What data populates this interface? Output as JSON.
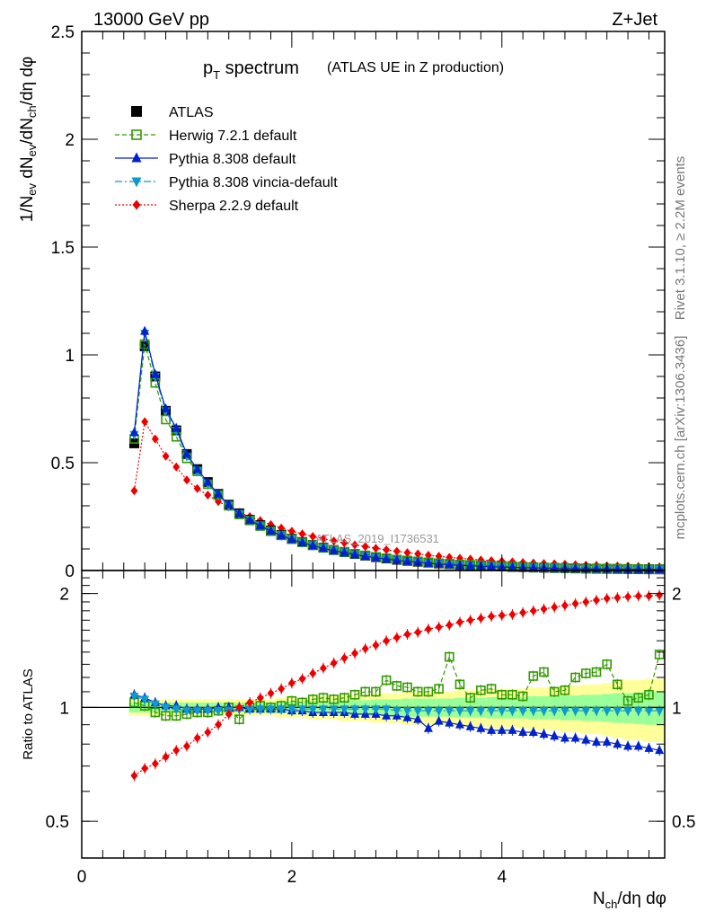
{
  "header": {
    "energy": "13000 GeV pp",
    "process": "Z+Jet",
    "side_top": "Rivet 3.1.10, ≥ 2.2M events",
    "side_bottom": "mcplots.cern.ch [arXiv:1306.3436]",
    "watermark": "ATLAS_2019_I1736531"
  },
  "colors": {
    "atlas": "#000000",
    "herwig": "#339900",
    "pythia": "#0022cc",
    "vincia": "#1199cc",
    "sherpa": "#ee0000",
    "band_outer": "#ffff99",
    "band_inner": "#99ff99"
  },
  "chart_data": [
    {
      "type": "line",
      "panel": "main",
      "title_main": "p",
      "title_sub": "T",
      "title_rest": " spectrum",
      "title_note": "(ATLAS UE in Z production)",
      "ylabel": "1/N_ev dN_ev/dN_ch/dη dφ",
      "ylim": [
        0,
        2.5
      ],
      "yticks": [
        "0",
        "0.5",
        "1",
        "1.5",
        "2",
        "2.5"
      ],
      "x": [
        0.5,
        0.6,
        0.7,
        0.8,
        0.9,
        1.0,
        1.1,
        1.2,
        1.3,
        1.4,
        1.5,
        1.6,
        1.7,
        1.8,
        1.9,
        2.0,
        2.1,
        2.2,
        2.3,
        2.4,
        2.5,
        2.6,
        2.7,
        2.8,
        2.9,
        3.0,
        3.1,
        3.2,
        3.3,
        3.4,
        3.5,
        3.6,
        3.7,
        3.8,
        3.9,
        4.0,
        4.1,
        4.2,
        4.3,
        4.4,
        4.5,
        4.6,
        4.7,
        4.8,
        4.9,
        5.0,
        5.1,
        5.2,
        5.3,
        5.4,
        5.5
      ],
      "legend": [
        {
          "label": "ATLAS",
          "marker": "square-filled"
        },
        {
          "label": "Herwig 7.2.1 default",
          "marker": "square-open"
        },
        {
          "label": "Pythia 8.308 default",
          "marker": "triangle-up"
        },
        {
          "label": "Pythia 8.308 vincia-default",
          "marker": "triangle-down"
        },
        {
          "label": "Sherpa 2.2.9 default",
          "marker": "diamond"
        }
      ],
      "series": [
        {
          "name": "ATLAS",
          "values": [
            0.59,
            1.04,
            0.9,
            0.74,
            0.65,
            0.54,
            0.47,
            0.41,
            0.355,
            0.305,
            0.265,
            0.235,
            0.21,
            0.185,
            0.165,
            0.147,
            0.132,
            0.118,
            0.106,
            0.095,
            0.086,
            0.077,
            0.069,
            0.062,
            0.056,
            0.05,
            0.045,
            0.041,
            0.037,
            0.033,
            0.03,
            0.027,
            0.025,
            0.023,
            0.021,
            0.019,
            0.017,
            0.0155,
            0.014,
            0.013,
            0.012,
            0.011,
            0.01,
            0.0093,
            0.0086,
            0.008,
            0.0074,
            0.0068,
            0.0063,
            0.0058,
            0.0054
          ]
        },
        {
          "name": "Herwig 7.2.1 default",
          "values": [
            0.61,
            1.05,
            0.87,
            0.7,
            0.62,
            0.52,
            0.46,
            0.4,
            0.35,
            0.3,
            0.26,
            0.232,
            0.206,
            0.182,
            0.163,
            0.145,
            0.131,
            0.117,
            0.105,
            0.095,
            0.086,
            0.078,
            0.07,
            0.063,
            0.057,
            0.051,
            0.046,
            0.042,
            0.038,
            0.034,
            0.031,
            0.028,
            0.026,
            0.024,
            0.022,
            0.02,
            0.018,
            0.016,
            0.0147,
            0.0136,
            0.0126,
            0.0116,
            0.0107,
            0.0099,
            0.0092,
            0.0085,
            0.0079,
            0.0073,
            0.0068,
            0.0063,
            0.0059
          ]
        },
        {
          "name": "Pythia 8.308 default",
          "values": [
            0.64,
            1.11,
            0.91,
            0.75,
            0.66,
            0.54,
            0.47,
            0.41,
            0.355,
            0.305,
            0.264,
            0.233,
            0.208,
            0.183,
            0.162,
            0.144,
            0.129,
            0.115,
            0.103,
            0.092,
            0.083,
            0.074,
            0.066,
            0.059,
            0.053,
            0.047,
            0.042,
            0.038,
            0.034,
            0.03,
            0.027,
            0.024,
            0.022,
            0.02,
            0.018,
            0.016,
            0.0145,
            0.0132,
            0.012,
            0.011,
            0.0099,
            0.009,
            0.0082,
            0.0075,
            0.0069,
            0.0063,
            0.0058,
            0.0053,
            0.0049,
            0.0045,
            0.0041
          ]
        },
        {
          "name": "Pythia 8.308 vincia-default",
          "values": [
            0.63,
            1.1,
            0.9,
            0.74,
            0.65,
            0.53,
            0.46,
            0.4,
            0.35,
            0.3,
            0.262,
            0.232,
            0.207,
            0.182,
            0.162,
            0.145,
            0.13,
            0.116,
            0.104,
            0.094,
            0.085,
            0.076,
            0.068,
            0.061,
            0.055,
            0.049,
            0.044,
            0.04,
            0.036,
            0.032,
            0.029,
            0.026,
            0.024,
            0.022,
            0.02,
            0.018,
            0.016,
            0.0148,
            0.0135,
            0.0124,
            0.0113,
            0.0104,
            0.0096,
            0.0088,
            0.0081,
            0.0075,
            0.0069,
            0.0064,
            0.0059,
            0.0054,
            0.005
          ]
        },
        {
          "name": "Sherpa 2.2.9 default",
          "values": [
            0.37,
            0.69,
            0.61,
            0.53,
            0.48,
            0.42,
            0.38,
            0.35,
            0.32,
            0.295,
            0.27,
            0.25,
            0.232,
            0.213,
            0.197,
            0.182,
            0.17,
            0.158,
            0.147,
            0.137,
            0.128,
            0.119,
            0.111,
            0.103,
            0.096,
            0.089,
            0.083,
            0.077,
            0.071,
            0.066,
            0.061,
            0.057,
            0.053,
            0.049,
            0.046,
            0.043,
            0.04,
            0.037,
            0.035,
            0.033,
            0.031,
            0.029,
            0.027,
            0.025,
            0.024,
            0.022,
            0.021,
            0.02,
            0.019,
            0.018,
            0.017
          ]
        }
      ]
    },
    {
      "type": "line",
      "panel": "ratio",
      "ylabel": "Ratio to ATLAS",
      "xlabel": "N_ch/dη dφ",
      "xlim": [
        0,
        5.55
      ],
      "ylim": [
        0.4,
        2.3
      ],
      "log_y": true,
      "xticks": [
        "0",
        "2",
        "4"
      ],
      "yticks": [
        "0.5",
        "1",
        "2"
      ],
      "band_outer": [
        0.05,
        0.05,
        0.05,
        0.05,
        0.05,
        0.05,
        0.05,
        0.05,
        0.05,
        0.05,
        0.05,
        0.05,
        0.05,
        0.05,
        0.06,
        0.06,
        0.06,
        0.07,
        0.07,
        0.07,
        0.08,
        0.08,
        0.08,
        0.09,
        0.09,
        0.09,
        0.1,
        0.1,
        0.1,
        0.1,
        0.1,
        0.11,
        0.11,
        0.11,
        0.12,
        0.12,
        0.12,
        0.12,
        0.13,
        0.13,
        0.13,
        0.14,
        0.14,
        0.15,
        0.15,
        0.16,
        0.17,
        0.18,
        0.18,
        0.19,
        0.19
      ],
      "band_inner": [
        0.03,
        0.03,
        0.03,
        0.03,
        0.03,
        0.03,
        0.03,
        0.03,
        0.03,
        0.03,
        0.03,
        0.03,
        0.03,
        0.03,
        0.035,
        0.035,
        0.035,
        0.04,
        0.04,
        0.04,
        0.045,
        0.045,
        0.045,
        0.05,
        0.05,
        0.05,
        0.055,
        0.055,
        0.055,
        0.055,
        0.055,
        0.06,
        0.06,
        0.06,
        0.065,
        0.065,
        0.065,
        0.065,
        0.07,
        0.07,
        0.07,
        0.075,
        0.075,
        0.08,
        0.08,
        0.085,
        0.09,
        0.09,
        0.095,
        0.1,
        0.1
      ],
      "series": [
        {
          "name": "Herwig 7.2.1 default",
          "values": [
            1.03,
            1.01,
            0.97,
            0.95,
            0.95,
            0.96,
            0.97,
            0.97,
            0.98,
            1.0,
            0.93,
            1.0,
            1.01,
            1.0,
            1.01,
            1.04,
            1.03,
            1.05,
            1.06,
            1.05,
            1.06,
            1.08,
            1.1,
            1.1,
            1.18,
            1.14,
            1.13,
            1.1,
            1.1,
            1.12,
            1.36,
            1.15,
            1.06,
            1.11,
            1.12,
            1.08,
            1.08,
            1.07,
            1.21,
            1.24,
            1.1,
            1.11,
            1.2,
            1.23,
            1.24,
            1.3,
            1.15,
            1.04,
            1.06,
            1.08,
            1.38
          ]
        },
        {
          "name": "Pythia 8.308 default",
          "values": [
            1.08,
            1.06,
            1.03,
            1.01,
            1.01,
            0.99,
            0.99,
            0.99,
            1.0,
            1.0,
            1.0,
            0.99,
            0.99,
            0.99,
            0.99,
            0.98,
            0.98,
            0.97,
            0.97,
            0.97,
            0.97,
            0.96,
            0.96,
            0.96,
            0.95,
            0.95,
            0.94,
            0.93,
            0.88,
            0.92,
            0.91,
            0.9,
            0.89,
            0.88,
            0.87,
            0.87,
            0.87,
            0.86,
            0.86,
            0.85,
            0.84,
            0.83,
            0.83,
            0.82,
            0.81,
            0.81,
            0.8,
            0.79,
            0.79,
            0.78,
            0.77
          ]
        },
        {
          "name": "Pythia 8.308 vincia-default",
          "values": [
            1.07,
            1.05,
            1.02,
            1.0,
            0.99,
            0.98,
            0.98,
            0.98,
            0.98,
            0.98,
            0.99,
            0.99,
            0.99,
            0.99,
            0.99,
            0.99,
            0.99,
            0.99,
            0.99,
            0.99,
            0.99,
            0.99,
            0.99,
            0.99,
            0.99,
            0.98,
            0.98,
            0.98,
            0.98,
            0.98,
            0.98,
            0.98,
            0.98,
            0.98,
            0.98,
            0.98,
            0.98,
            0.98,
            0.98,
            0.98,
            0.98,
            0.98,
            0.98,
            0.98,
            0.98,
            0.98,
            0.98,
            0.98,
            0.98,
            0.98,
            0.98
          ]
        },
        {
          "name": "Sherpa 2.2.9 default",
          "values": [
            0.66,
            0.69,
            0.71,
            0.74,
            0.77,
            0.79,
            0.83,
            0.86,
            0.9,
            0.96,
            1.0,
            1.03,
            1.06,
            1.09,
            1.12,
            1.16,
            1.19,
            1.23,
            1.27,
            1.31,
            1.35,
            1.39,
            1.43,
            1.46,
            1.5,
            1.53,
            1.56,
            1.58,
            1.61,
            1.63,
            1.65,
            1.68,
            1.7,
            1.72,
            1.74,
            1.75,
            1.76,
            1.78,
            1.8,
            1.82,
            1.84,
            1.86,
            1.88,
            1.9,
            1.92,
            1.94,
            1.95,
            1.96,
            1.97,
            1.97,
            1.98
          ]
        }
      ]
    }
  ]
}
